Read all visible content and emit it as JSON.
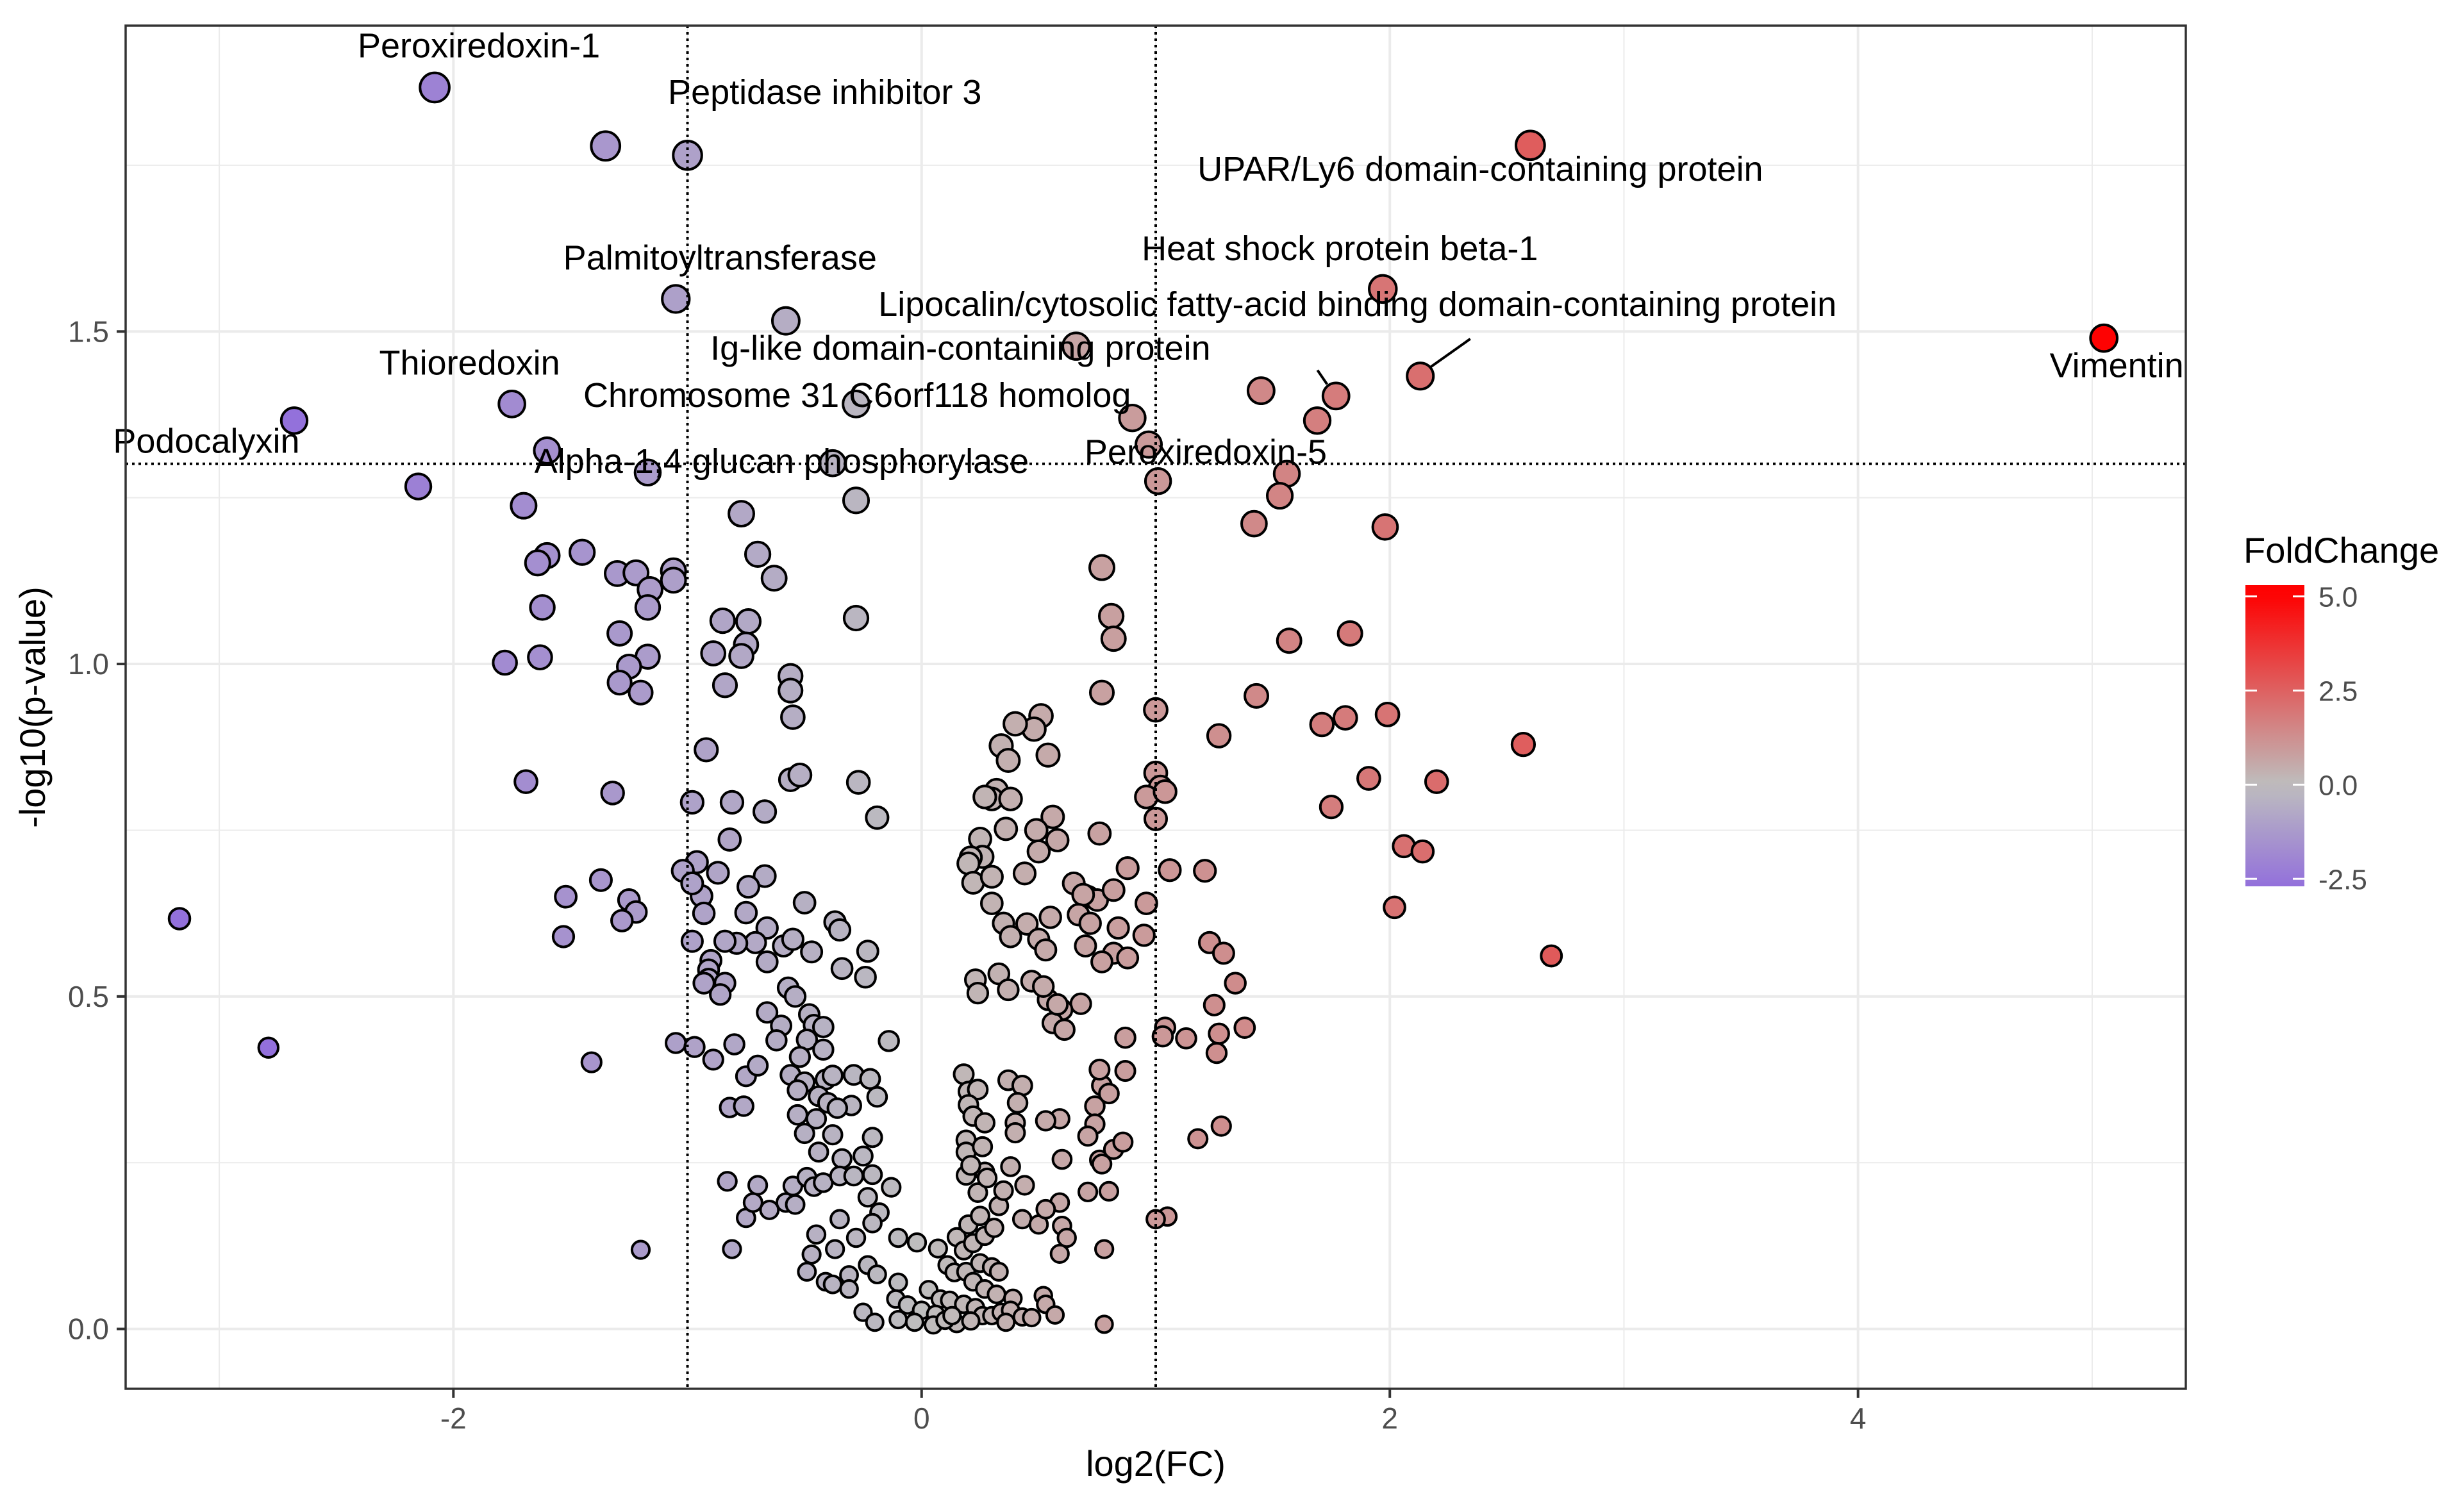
{
  "chart_data": {
    "type": "scatter",
    "title": "",
    "xlabel": "log2(FC)",
    "ylabel": "-log10(p-value)",
    "xlim": [
      -3.4,
      5.4
    ],
    "ylim": [
      -0.09,
      1.96
    ],
    "x_ticks": [
      -2,
      0,
      2,
      4
    ],
    "y_ticks": [
      0.0,
      0.5,
      1.0,
      1.5
    ],
    "x_tick_labels": [
      "-2",
      "0",
      "2",
      "4"
    ],
    "y_tick_labels": [
      "0.0",
      "0.5",
      "1.0",
      "1.5"
    ],
    "grid": true,
    "thresholds": {
      "fc_lines": [
        -1,
        1
      ],
      "p_line": 1.301
    },
    "legend": {
      "title": "FoldChange",
      "position": "right",
      "range": [
        -2.7,
        5.1
      ],
      "ticks": [
        5.0,
        2.5,
        0.0,
        -2.5
      ],
      "tick_labels": [
        "5.0",
        "2.5",
        "0.0",
        "-2.5"
      ],
      "colors": {
        "low": "#9370DB",
        "mid": "#BEBEBE",
        "high": "#FF0000"
      }
    },
    "labeled_points": [
      {
        "x": -2.08,
        "y": 1.867,
        "label": "Peroxiredoxin-1"
      },
      {
        "x": -1.35,
        "y": 1.779,
        "label": "Peptidase inhibitor 3"
      },
      {
        "x": -1.05,
        "y": 1.549,
        "label": "Palmitoyltransferase"
      },
      {
        "x": -1.75,
        "y": 1.391,
        "label": "Thioredoxin"
      },
      {
        "x": -2.68,
        "y": 1.366,
        "label": "Podocalyxin"
      },
      {
        "x": -1.6,
        "y": 1.321,
        "label": "Alpha-1,4 glucan phosphorylase"
      },
      {
        "x": 2.6,
        "y": 1.78,
        "label": "UPAR/Ly6 domain-containing protein"
      },
      {
        "x": 1.97,
        "y": 1.564,
        "label": "Heat shock protein beta-1"
      },
      {
        "x": 2.13,
        "y": 1.433,
        "label": "Lipocalin/cytosolic fatty-acid binding domain-containing protein"
      },
      {
        "x": 1.45,
        "y": 1.411,
        "label": "Ig-like domain-containing protein"
      },
      {
        "x": 1.77,
        "y": 1.403,
        "label": "Chromosome 31 C6orf118 homolog"
      },
      {
        "x": 1.69,
        "y": 1.366,
        "label": "Peroxiredoxin-5"
      },
      {
        "x": 5.05,
        "y": 1.49,
        "label": "Vimentin"
      }
    ],
    "points": [
      [
        -1.0,
        1.765
      ],
      [
        -0.58,
        1.516
      ],
      [
        -0.28,
        1.391
      ],
      [
        -0.38,
        1.302
      ],
      [
        -2.15,
        1.267
      ],
      [
        -1.17,
        1.288
      ],
      [
        -0.28,
        1.246
      ],
      [
        0.66,
        1.478
      ],
      [
        0.9,
        1.37
      ],
      [
        0.97,
        1.33
      ],
      [
        1.01,
        1.275
      ],
      [
        1.56,
        1.286
      ],
      [
        1.53,
        1.253
      ],
      [
        1.42,
        1.211
      ],
      [
        1.98,
        1.206
      ],
      [
        -1.7,
        1.238
      ],
      [
        -0.77,
        1.226
      ],
      [
        -1.45,
        1.168
      ],
      [
        -1.6,
        1.163
      ],
      [
        -1.64,
        1.152
      ],
      [
        -1.3,
        1.136
      ],
      [
        -1.22,
        1.137
      ],
      [
        -1.06,
        1.14
      ],
      [
        -1.06,
        1.126
      ],
      [
        -1.16,
        1.112
      ],
      [
        -1.17,
        1.085
      ],
      [
        -1.62,
        1.085
      ],
      [
        -0.7,
        1.165
      ],
      [
        -0.63,
        1.129
      ],
      [
        -0.85,
        1.065
      ],
      [
        -0.74,
        1.064
      ],
      [
        -0.89,
        1.016
      ],
      [
        -0.75,
        1.029
      ],
      [
        -0.77,
        1.012
      ],
      [
        -0.28,
        1.069
      ],
      [
        -1.29,
        1.046
      ],
      [
        -1.17,
        1.011
      ],
      [
        -1.63,
        1.01
      ],
      [
        -1.78,
        1.002
      ],
      [
        -1.25,
        0.996
      ],
      [
        -1.29,
        0.972
      ],
      [
        -1.2,
        0.957
      ],
      [
        -0.84,
        0.968
      ],
      [
        -0.56,
        0.982
      ],
      [
        -0.56,
        0.96
      ],
      [
        -0.55,
        0.92
      ],
      [
        0.77,
        1.145
      ],
      [
        0.81,
        1.072
      ],
      [
        0.82,
        1.038
      ],
      [
        1.57,
        1.035
      ],
      [
        1.83,
        1.046
      ],
      [
        0.77,
        0.957
      ],
      [
        1.43,
        0.952
      ],
      [
        0.51,
        0.922
      ],
      [
        0.48,
        0.902
      ],
      [
        0.4,
        0.91
      ],
      [
        0.34,
        0.877
      ],
      [
        0.37,
        0.855
      ],
      [
        0.54,
        0.863
      ],
      [
        1.0,
        0.931
      ],
      [
        1.27,
        0.892
      ],
      [
        1.71,
        0.909
      ],
      [
        1.81,
        0.919
      ],
      [
        1.99,
        0.924
      ],
      [
        2.57,
        0.879
      ],
      [
        -0.92,
        0.871
      ],
      [
        -1.69,
        0.823
      ],
      [
        -1.32,
        0.806
      ],
      [
        -0.56,
        0.826
      ],
      [
        -0.52,
        0.833
      ],
      [
        -0.27,
        0.822
      ],
      [
        -0.98,
        0.792
      ],
      [
        -0.81,
        0.792
      ],
      [
        -0.67,
        0.778
      ],
      [
        -0.19,
        0.769
      ],
      [
        1.0,
        0.836
      ],
      [
        1.02,
        0.815
      ],
      [
        0.96,
        0.8
      ],
      [
        1.04,
        0.808
      ],
      [
        0.32,
        0.81
      ],
      [
        0.3,
        0.797
      ],
      [
        0.27,
        0.8
      ],
      [
        0.38,
        0.797
      ],
      [
        1.0,
        0.767
      ],
      [
        0.76,
        0.745
      ],
      [
        1.91,
        0.828
      ],
      [
        2.2,
        0.823
      ],
      [
        1.75,
        0.785
      ],
      [
        0.56,
        0.77
      ],
      [
        0.25,
        0.737
      ],
      [
        0.26,
        0.71
      ],
      [
        0.21,
        0.709
      ],
      [
        0.36,
        0.752
      ],
      [
        0.49,
        0.75
      ],
      [
        0.58,
        0.735
      ],
      [
        -0.82,
        0.736
      ],
      [
        -0.96,
        0.702
      ],
      [
        -0.87,
        0.686
      ],
      [
        -1.02,
        0.689
      ],
      [
        -1.37,
        0.675
      ],
      [
        -1.52,
        0.65
      ],
      [
        -1.25,
        0.645
      ],
      [
        -1.22,
        0.627
      ],
      [
        -1.28,
        0.614
      ],
      [
        -1.53,
        0.59
      ],
      [
        -0.67,
        0.681
      ],
      [
        -0.74,
        0.665
      ],
      [
        -0.94,
        0.651
      ],
      [
        -0.98,
        0.67
      ],
      [
        -0.93,
        0.625
      ],
      [
        -0.75,
        0.626
      ],
      [
        -0.66,
        0.603
      ],
      [
        -0.5,
        0.641
      ],
      [
        -0.37,
        0.612
      ],
      [
        -0.35,
        0.6
      ],
      [
        0.2,
        0.7
      ],
      [
        0.22,
        0.671
      ],
      [
        0.3,
        0.68
      ],
      [
        0.44,
        0.685
      ],
      [
        0.5,
        0.718
      ],
      [
        0.65,
        0.67
      ],
      [
        0.71,
        0.65
      ],
      [
        0.75,
        0.645
      ],
      [
        0.82,
        0.66
      ],
      [
        0.69,
        0.653
      ],
      [
        0.88,
        0.693
      ],
      [
        1.06,
        0.69
      ],
      [
        1.21,
        0.689
      ],
      [
        2.06,
        0.726
      ],
      [
        2.14,
        0.718
      ],
      [
        2.02,
        0.634
      ],
      [
        2.69,
        0.561
      ],
      [
        0.96,
        0.64
      ],
      [
        0.84,
        0.603
      ],
      [
        0.67,
        0.623
      ],
      [
        0.72,
        0.61
      ],
      [
        0.55,
        0.619
      ],
      [
        0.35,
        0.61
      ],
      [
        0.3,
        0.64
      ],
      [
        0.45,
        0.609
      ],
      [
        -3.17,
        0.617
      ],
      [
        -0.59,
        0.576
      ],
      [
        -0.55,
        0.586
      ],
      [
        -0.71,
        0.581
      ],
      [
        -0.79,
        0.58
      ],
      [
        -0.84,
        0.583
      ],
      [
        -0.98,
        0.583
      ],
      [
        -0.66,
        0.552
      ],
      [
        -0.47,
        0.567
      ],
      [
        -0.23,
        0.568
      ],
      [
        -0.34,
        0.542
      ],
      [
        -0.24,
        0.529
      ],
      [
        -0.9,
        0.554
      ],
      [
        -0.91,
        0.54
      ],
      [
        -0.91,
        0.526
      ],
      [
        -0.93,
        0.52
      ],
      [
        -0.84,
        0.52
      ],
      [
        -0.86,
        0.503
      ],
      [
        -0.57,
        0.513
      ],
      [
        -0.54,
        0.5
      ],
      [
        1.23,
        0.581
      ],
      [
        1.29,
        0.565
      ],
      [
        0.95,
        0.592
      ],
      [
        0.82,
        0.565
      ],
      [
        0.38,
        0.59
      ],
      [
        0.5,
        0.586
      ],
      [
        0.53,
        0.57
      ],
      [
        0.7,
        0.576
      ],
      [
        0.77,
        0.552
      ],
      [
        0.88,
        0.558
      ],
      [
        1.34,
        0.52
      ],
      [
        1.38,
        0.453
      ],
      [
        1.25,
        0.487
      ],
      [
        1.27,
        0.444
      ],
      [
        1.26,
        0.415
      ],
      [
        0.33,
        0.534
      ],
      [
        0.23,
        0.525
      ],
      [
        0.24,
        0.505
      ],
      [
        0.47,
        0.523
      ],
      [
        0.54,
        0.495
      ],
      [
        0.68,
        0.489
      ],
      [
        0.6,
        0.48
      ],
      [
        0.37,
        0.51
      ],
      [
        0.52,
        0.515
      ],
      [
        0.56,
        0.46
      ],
      [
        0.58,
        0.488
      ],
      [
        1.04,
        0.453
      ],
      [
        1.03,
        0.44
      ],
      [
        0.87,
        0.438
      ],
      [
        0.61,
        0.45
      ],
      [
        -1.05,
        0.43
      ],
      [
        -0.97,
        0.424
      ],
      [
        -0.89,
        0.405
      ],
      [
        -0.8,
        0.428
      ],
      [
        -0.66,
        0.476
      ],
      [
        -0.48,
        0.473
      ],
      [
        -0.46,
        0.457
      ],
      [
        -0.42,
        0.454
      ],
      [
        -0.6,
        0.456
      ],
      [
        -0.14,
        0.433
      ],
      [
        -0.62,
        0.434
      ],
      [
        -0.49,
        0.435
      ],
      [
        -0.42,
        0.42
      ],
      [
        -0.52,
        0.409
      ],
      [
        -0.41,
        0.375
      ],
      [
        -2.79,
        0.423
      ],
      [
        -1.41,
        0.401
      ],
      [
        -0.75,
        0.38
      ],
      [
        -0.82,
        0.333
      ],
      [
        -0.76,
        0.335
      ],
      [
        -0.7,
        0.396
      ],
      [
        -0.56,
        0.382
      ],
      [
        -0.5,
        0.371
      ],
      [
        -0.53,
        0.359
      ],
      [
        -0.38,
        0.381
      ],
      [
        -0.29,
        0.382
      ],
      [
        -0.22,
        0.376
      ],
      [
        -0.19,
        0.349
      ],
      [
        -0.44,
        0.35
      ],
      [
        -0.4,
        0.34
      ],
      [
        -0.3,
        0.336
      ],
      [
        -0.36,
        0.332
      ],
      [
        -0.53,
        0.322
      ],
      [
        -0.45,
        0.316
      ],
      [
        -0.5,
        0.294
      ],
      [
        -0.44,
        0.266
      ],
      [
        -0.38,
        0.292
      ],
      [
        -0.21,
        0.288
      ],
      [
        -0.34,
        0.256
      ],
      [
        -0.25,
        0.26
      ],
      [
        0.18,
        0.383
      ],
      [
        0.2,
        0.357
      ],
      [
        0.24,
        0.36
      ],
      [
        0.2,
        0.337
      ],
      [
        0.22,
        0.32
      ],
      [
        0.37,
        0.374
      ],
      [
        0.43,
        0.366
      ],
      [
        0.41,
        0.34
      ],
      [
        0.27,
        0.31
      ],
      [
        0.4,
        0.31
      ],
      [
        0.59,
        0.316
      ],
      [
        0.4,
        0.295
      ],
      [
        0.6,
        0.255
      ],
      [
        0.19,
        0.284
      ],
      [
        0.19,
        0.266
      ],
      [
        0.26,
        0.274
      ],
      [
        0.38,
        0.244
      ],
      [
        0.27,
        0.236
      ],
      [
        0.44,
        0.216
      ],
      [
        0.59,
        0.19
      ],
      [
        0.53,
        0.313
      ],
      [
        0.74,
        0.335
      ],
      [
        0.77,
        0.366
      ],
      [
        0.76,
        0.39
      ],
      [
        0.8,
        0.354
      ],
      [
        0.87,
        0.388
      ],
      [
        0.74,
        0.308
      ],
      [
        0.71,
        0.29
      ],
      [
        0.76,
        0.254
      ],
      [
        0.82,
        0.27
      ],
      [
        0.86,
        0.281
      ],
      [
        1.13,
        0.437
      ],
      [
        1.18,
        0.286
      ],
      [
        1.28,
        0.305
      ],
      [
        0.77,
        0.248
      ],
      [
        0.8,
        0.207
      ],
      [
        0.71,
        0.206
      ],
      [
        1.05,
        0.169
      ],
      [
        1.0,
        0.165
      ],
      [
        0.78,
        0.12
      ],
      [
        -0.83,
        0.222
      ],
      [
        -0.7,
        0.216
      ],
      [
        -0.65,
        0.179
      ],
      [
        -0.58,
        0.19
      ],
      [
        -0.55,
        0.215
      ],
      [
        -0.49,
        0.228
      ],
      [
        -0.46,
        0.214
      ],
      [
        -0.42,
        0.22
      ],
      [
        -0.35,
        0.23
      ],
      [
        -0.29,
        0.23
      ],
      [
        -0.21,
        0.232
      ],
      [
        -0.23,
        0.198
      ],
      [
        -0.18,
        0.175
      ],
      [
        -0.13,
        0.213
      ],
      [
        -0.75,
        0.167
      ],
      [
        -0.54,
        0.187
      ],
      [
        -0.35,
        0.165
      ],
      [
        -0.21,
        0.159
      ],
      [
        -0.1,
        0.137
      ],
      [
        -0.02,
        0.13
      ],
      [
        -0.45,
        0.142
      ],
      [
        -0.28,
        0.137
      ],
      [
        -0.37,
        0.12
      ],
      [
        -0.47,
        0.112
      ],
      [
        -0.81,
        0.12
      ],
      [
        -0.72,
        0.19
      ],
      [
        -1.2,
        0.119
      ],
      [
        -0.49,
        0.086
      ],
      [
        -0.41,
        0.071
      ],
      [
        -0.38,
        0.067
      ],
      [
        -0.31,
        0.081
      ],
      [
        -0.31,
        0.06
      ],
      [
        -0.23,
        0.096
      ],
      [
        -0.19,
        0.082
      ],
      [
        -0.1,
        0.07
      ],
      [
        0.07,
        0.121
      ],
      [
        0.15,
        0.138
      ],
      [
        0.18,
        0.118
      ],
      [
        0.22,
        0.129
      ],
      [
        0.27,
        0.14
      ],
      [
        0.31,
        0.152
      ],
      [
        0.2,
        0.157
      ],
      [
        0.25,
        0.17
      ],
      [
        0.33,
        0.185
      ],
      [
        0.24,
        0.205
      ],
      [
        0.19,
        0.231
      ],
      [
        0.21,
        0.246
      ],
      [
        0.28,
        0.227
      ],
      [
        0.35,
        0.208
      ],
      [
        0.43,
        0.165
      ],
      [
        0.5,
        0.157
      ],
      [
        0.53,
        0.18
      ],
      [
        0.6,
        0.155
      ],
      [
        0.62,
        0.137
      ],
      [
        0.59,
        0.113
      ],
      [
        0.11,
        0.096
      ],
      [
        0.14,
        0.085
      ],
      [
        0.19,
        0.086
      ],
      [
        0.25,
        0.099
      ],
      [
        0.3,
        0.093
      ],
      [
        0.33,
        0.086
      ],
      [
        0.22,
        0.071
      ],
      [
        0.27,
        0.06
      ],
      [
        0.32,
        0.052
      ],
      [
        0.39,
        0.046
      ],
      [
        0.03,
        0.059
      ],
      [
        0.08,
        0.045
      ],
      [
        0.12,
        0.043
      ],
      [
        0.18,
        0.037
      ],
      [
        0.23,
        0.032
      ],
      [
        0.26,
        0.02
      ],
      [
        0.3,
        0.02
      ],
      [
        0.34,
        0.025
      ],
      [
        0.38,
        0.028
      ],
      [
        0.43,
        0.018
      ],
      [
        -0.11,
        0.045
      ],
      [
        -0.06,
        0.036
      ],
      [
        0.0,
        0.028
      ],
      [
        0.06,
        0.022
      ],
      [
        0.11,
        0.014
      ],
      [
        0.15,
        0.008
      ],
      [
        0.21,
        0.012
      ],
      [
        0.36,
        0.01
      ],
      [
        -0.1,
        0.014
      ],
      [
        -0.03,
        0.01
      ],
      [
        0.05,
        0.006
      ],
      [
        0.1,
        0.013
      ],
      [
        0.52,
        0.05
      ],
      [
        0.53,
        0.037
      ],
      [
        0.78,
        0.007
      ],
      [
        0.57,
        0.021
      ],
      [
        0.47,
        0.017
      ],
      [
        0.13,
        0.02
      ],
      [
        -0.25,
        0.025
      ],
      [
        -0.2,
        0.01
      ]
    ]
  }
}
